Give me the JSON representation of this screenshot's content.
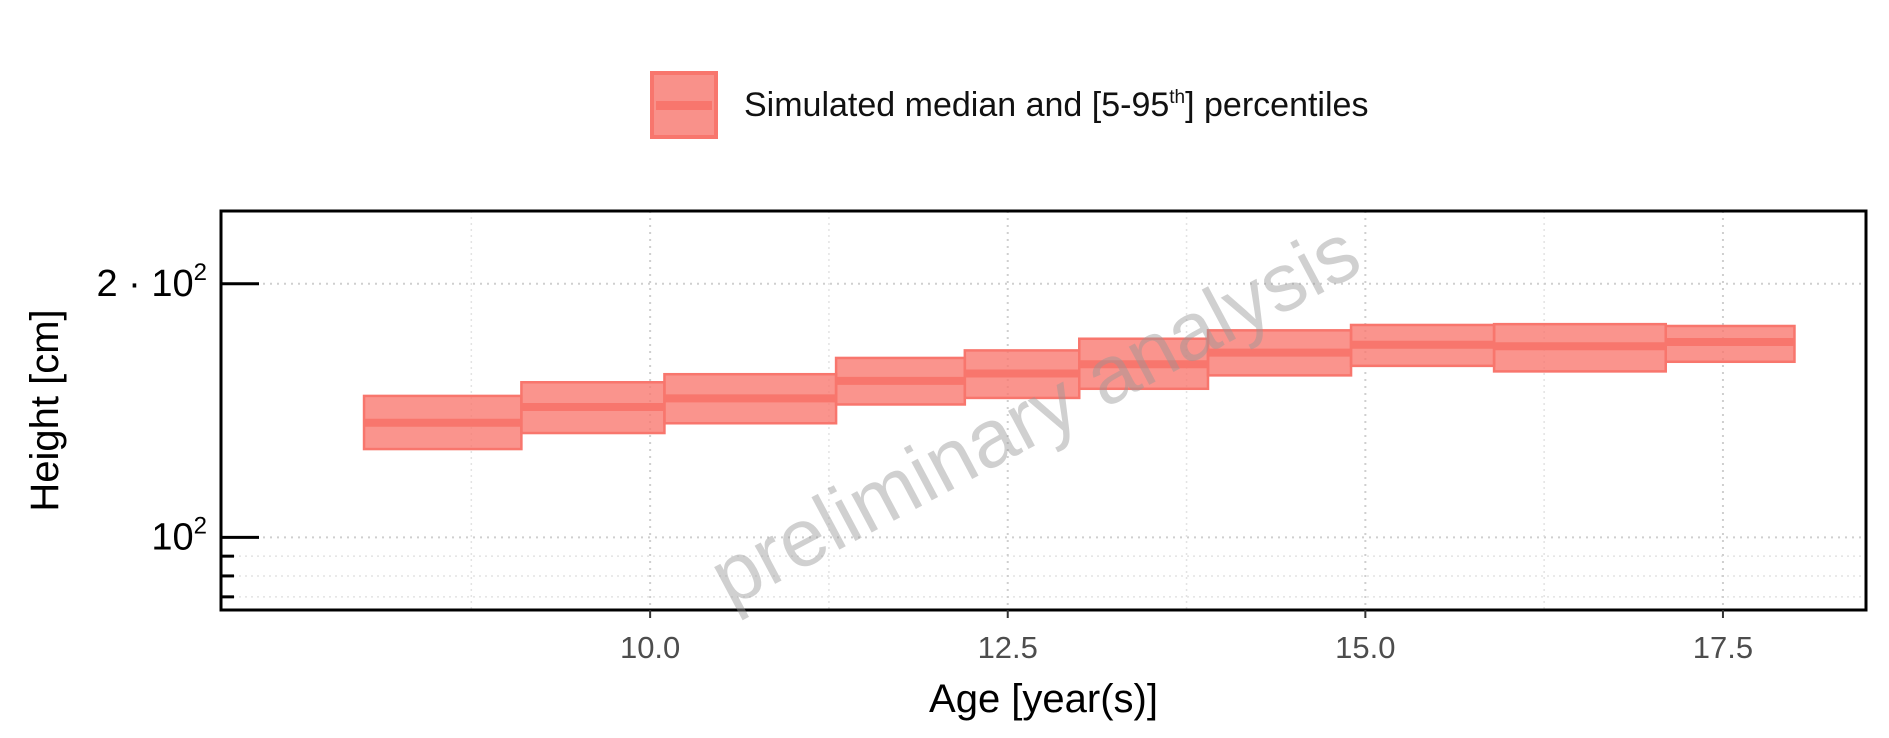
{
  "legend": {
    "label_prefix": "Simulated median and [5-95",
    "label_sup": "th",
    "label_suffix": "] percentiles",
    "fill_color": "#f8766d"
  },
  "watermark": "preliminary analysis",
  "chart_data": {
    "type": "area",
    "xlabel": "Age [year(s)]",
    "ylabel": "Height [cm]",
    "xlim": [
      7.0,
      18.5
    ],
    "ylim": [
      82,
      244
    ],
    "y_scale": "log",
    "grid": true,
    "legend_position": "top",
    "x_ticks": [
      10.0,
      12.5,
      15.0,
      17.5
    ],
    "x_tick_labels": [
      "10.0",
      "12.5",
      "15.0",
      "17.5"
    ],
    "y_ticks": [
      100,
      200
    ],
    "y_tick_labels": [
      {
        "base": "10",
        "exp": "2"
      },
      {
        "base": "2 · 10",
        "exp": "2"
      }
    ],
    "series": [
      {
        "name": "Simulated median and [5-95th] percentiles",
        "color": "#f8766d",
        "steps": [
          {
            "x_start": 8.0,
            "x_end": 9.1,
            "p5": 127.3,
            "median": 136.8,
            "p95": 147.2
          },
          {
            "x_start": 9.1,
            "x_end": 10.1,
            "p5": 133.0,
            "median": 142.8,
            "p95": 152.8
          },
          {
            "x_start": 10.1,
            "x_end": 11.3,
            "p5": 136.6,
            "median": 146.2,
            "p95": 156.2
          },
          {
            "x_start": 11.3,
            "x_end": 12.2,
            "p5": 143.8,
            "median": 153.4,
            "p95": 163.3
          },
          {
            "x_start": 12.2,
            "x_end": 13.0,
            "p5": 146.4,
            "median": 156.5,
            "p95": 166.7
          },
          {
            "x_start": 13.0,
            "x_end": 13.9,
            "p5": 150.1,
            "median": 160.5,
            "p95": 172.1
          },
          {
            "x_start": 13.9,
            "x_end": 14.9,
            "p5": 155.7,
            "median": 165.7,
            "p95": 176.1
          },
          {
            "x_start": 14.9,
            "x_end": 15.9,
            "p5": 159.8,
            "median": 169.3,
            "p95": 178.7
          },
          {
            "x_start": 15.9,
            "x_end": 17.1,
            "p5": 157.4,
            "median": 168.6,
            "p95": 179.1
          },
          {
            "x_start": 17.1,
            "x_end": 18.0,
            "p5": 161.6,
            "median": 170.6,
            "p95": 178.2
          }
        ]
      }
    ]
  }
}
